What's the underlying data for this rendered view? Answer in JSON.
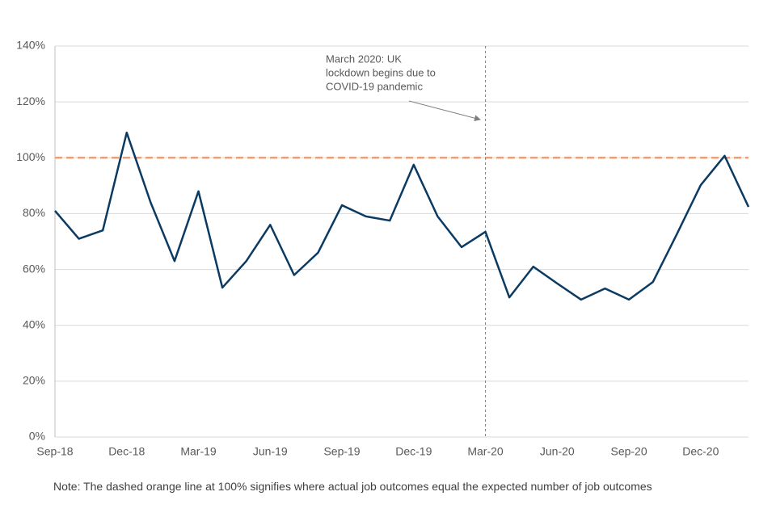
{
  "chart_data": {
    "type": "line",
    "categories": [
      "Sep-18",
      null,
      null,
      "Dec-18",
      null,
      null,
      "Mar-19",
      null,
      null,
      "Jun-19",
      null,
      null,
      "Sep-19",
      null,
      null,
      "Dec-19",
      null,
      null,
      "Mar-20",
      null,
      null,
      "Jun-20",
      null,
      null,
      "Sep-20",
      null,
      null,
      "Dec-20",
      null,
      null
    ],
    "series": [
      {
        "color": "#0b3a62",
        "values": [
          81,
          71,
          74,
          109,
          84,
          63,
          88,
          53.5,
          63,
          76,
          58,
          66,
          83,
          79,
          77.5,
          97.5,
          79,
          68,
          73.5,
          50,
          61,
          55,
          49.2,
          53.2,
          49.2,
          55.5,
          72.6,
          90.2,
          100.7,
          82.4
        ]
      }
    ],
    "ylim": [
      0,
      140
    ],
    "yticks": [
      {
        "value": 0,
        "label": "0%"
      },
      {
        "value": 20,
        "label": "20%"
      },
      {
        "value": 40,
        "label": "40%"
      },
      {
        "value": 60,
        "label": "60%"
      },
      {
        "value": 80,
        "label": "80%"
      },
      {
        "value": 100,
        "label": "100%"
      },
      {
        "value": 120,
        "label": "120%"
      },
      {
        "value": 140,
        "label": "140%"
      }
    ],
    "grid": true,
    "reference_line": {
      "value": 100,
      "color": "#e8a07e",
      "dashed": true
    },
    "annotation": {
      "x": "Mar-20",
      "text_lines": [
        "March 2020: UK",
        "lockdown begins due to",
        "COVID-19 pandemic"
      ]
    },
    "note": "Note: The dashed orange line at 100% signifies where actual job outcomes equal the expected number of job outcomes"
  }
}
